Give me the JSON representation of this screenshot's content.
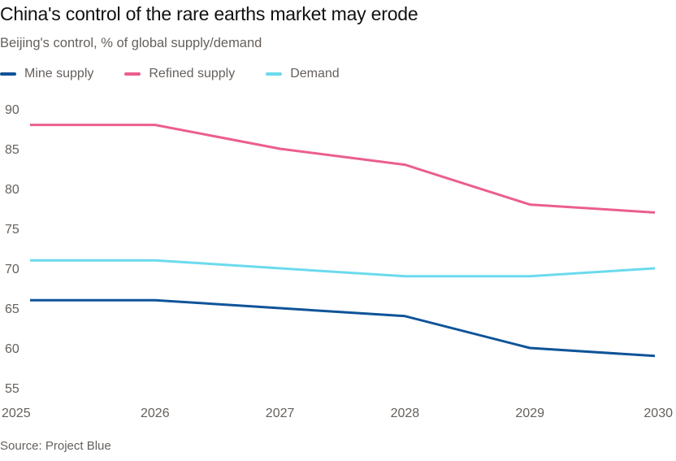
{
  "header": {
    "title": "China's control of the rare earths market may erode",
    "subtitle": "Beijing's control, % of global supply/demand"
  },
  "legend": [
    {
      "label": "Mine supply",
      "color": "#0f5499"
    },
    {
      "label": "Refined supply",
      "color": "#eb5e8d"
    },
    {
      "label": "Demand",
      "color": "#6bdaed"
    }
  ],
  "footer": {
    "source": "Source: Project Blue"
  },
  "chart_data": {
    "type": "line",
    "title": "China's control of the rare earths market may erode",
    "subtitle": "Beijing's control, % of global supply/demand",
    "xlabel": "",
    "ylabel": "",
    "x": [
      "2025",
      "2026",
      "2027",
      "2028",
      "2029",
      "2030"
    ],
    "ylim": [
      55,
      90
    ],
    "yticks": [
      90,
      85,
      80,
      75,
      70,
      65,
      60,
      55
    ],
    "grid": false,
    "legend_position": "top-left",
    "series": [
      {
        "name": "Mine supply",
        "color": "#0f5499",
        "values": [
          66,
          66,
          65,
          64,
          60,
          59
        ]
      },
      {
        "name": "Refined supply",
        "color": "#eb5e8d",
        "values": [
          88,
          88,
          85,
          83,
          78,
          77
        ]
      },
      {
        "name": "Demand",
        "color": "#6bdaed",
        "values": [
          71,
          71,
          70,
          69,
          69,
          70
        ]
      }
    ],
    "source": "Source: Project Blue"
  }
}
